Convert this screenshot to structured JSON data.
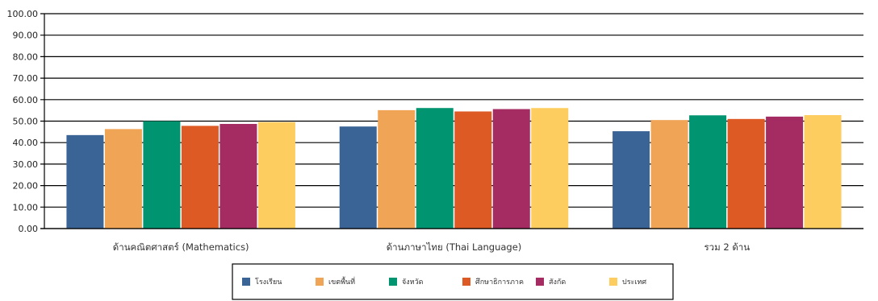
{
  "chart_data": {
    "type": "bar",
    "categories": [
      "ด้านคณิตศาสตร์ (Mathematics)",
      "ด้านภาษาไทย (Thai Language)",
      "รวม 2 ด้าน"
    ],
    "series": [
      {
        "name": "โรงเรียน",
        "color": "#3a6496",
        "values": [
          43.5,
          47.5,
          45.3
        ]
      },
      {
        "name": "เขตพื้นที่",
        "color": "#f0a456",
        "values": [
          46.3,
          55.1,
          50.5
        ]
      },
      {
        "name": "จังหวัด",
        "color": "#009470",
        "values": [
          50.0,
          56.1,
          52.7
        ]
      },
      {
        "name": "ศึกษาธิการภาค",
        "color": "#de5a25",
        "values": [
          47.8,
          54.5,
          51.0
        ]
      },
      {
        "name": "สังกัด",
        "color": "#a42c62",
        "values": [
          48.7,
          55.6,
          52.1
        ]
      },
      {
        "name": "ประเทศ",
        "color": "#fdcd60",
        "values": [
          49.5,
          56.1,
          52.8
        ]
      }
    ],
    "y_ticks": [
      "0.00",
      "10.00",
      "20.00",
      "30.00",
      "40.00",
      "50.00",
      "60.00",
      "70.00",
      "80.00",
      "90.00",
      "100.00"
    ],
    "ylim": [
      0,
      100
    ],
    "grid": true,
    "legend_position": "bottom-center"
  }
}
